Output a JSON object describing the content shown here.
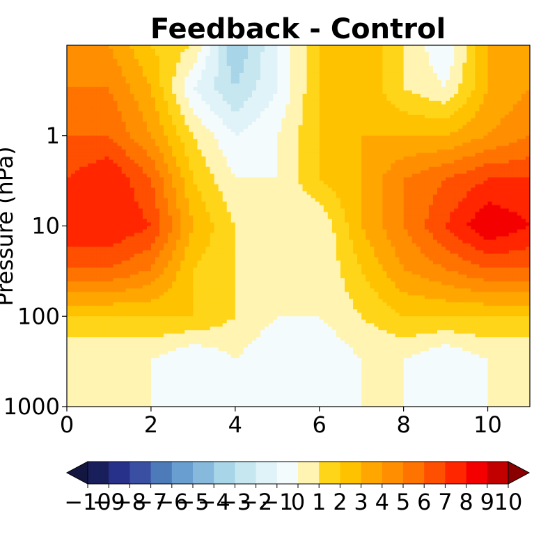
{
  "chart_data": {
    "type": "heatmap",
    "title": "Feedback - Control",
    "xlabel": "",
    "ylabel": "Pressure (hPa)",
    "x_ticks": [
      "0",
      "2",
      "4",
      "6",
      "8",
      "10"
    ],
    "x_tick_values": [
      0,
      2,
      4,
      6,
      8,
      10
    ],
    "xlim": [
      0,
      11
    ],
    "y_scale": "log",
    "y_inverted": true,
    "y_ticks": [
      "1",
      "10",
      "100",
      "1000"
    ],
    "y_tick_values": [
      1,
      10,
      100,
      1000
    ],
    "ylim": [
      1000,
      0.1
    ],
    "x": [
      0,
      1,
      2,
      3,
      4,
      5,
      6,
      7,
      8,
      9,
      10,
      11
    ],
    "y": [
      0.1,
      0.3,
      1,
      3,
      10,
      30,
      100,
      300,
      1000
    ],
    "z": [
      [
        4,
        4,
        2,
        1,
        -4,
        -1,
        2,
        3,
        1,
        -1,
        3,
        3
      ],
      [
        5,
        5,
        3,
        -1,
        -3,
        -1,
        2,
        3,
        1,
        0,
        3,
        4
      ],
      [
        6,
        6,
        4,
        1,
        -1,
        0,
        2,
        3,
        3,
        3,
        4,
        5
      ],
      [
        7,
        8,
        6,
        2,
        0,
        0,
        2,
        3,
        5,
        6,
        7,
        7
      ],
      [
        8,
        8,
        7,
        3,
        1,
        0,
        0,
        3,
        5,
        7,
        9,
        8
      ],
      [
        6,
        6,
        5,
        2,
        1,
        0,
        0,
        2,
        4,
        5,
        6,
        6
      ],
      [
        2,
        2,
        2,
        2,
        1,
        0,
        0,
        1,
        2,
        2,
        2,
        2
      ],
      [
        0,
        0,
        0,
        -1,
        0,
        -1,
        -1,
        0,
        0,
        -1,
        0,
        0
      ],
      [
        0,
        0,
        0,
        0,
        0,
        0,
        0,
        0,
        0,
        0,
        0,
        0
      ]
    ],
    "contour_lines": "black, solid for positive, dashed for negative",
    "colorbar": {
      "orientation": "horizontal",
      "extend": "both",
      "levels": [
        -10,
        -9,
        -8,
        -7,
        -6,
        -5,
        -4,
        -3,
        -2,
        -1,
        0,
        1,
        2,
        3,
        4,
        5,
        6,
        7,
        8,
        9,
        10
      ],
      "tick_labels": [
        "−10",
        "−9",
        "−8",
        "−7",
        "−6",
        "−5",
        "−4",
        "−3",
        "−2",
        "−1",
        "0",
        "1",
        "2",
        "3",
        "4",
        "5",
        "6",
        "7",
        "8",
        "9",
        "10"
      ],
      "colors": [
        "#191f5b",
        "#28318a",
        "#3a4fa2",
        "#4d7bb9",
        "#689fd0",
        "#86b9dc",
        "#a8d5e8",
        "#c6e7f0",
        "#e0f3f8",
        "#f4fbfd",
        "#fff4b2",
        "#ffd519",
        "#ffc200",
        "#ffa600",
        "#ff8f00",
        "#ff7300",
        "#ff4f00",
        "#ff2600",
        "#f50000",
        "#c20000"
      ],
      "under_color": "#141642",
      "over_color": "#8a0000"
    }
  }
}
